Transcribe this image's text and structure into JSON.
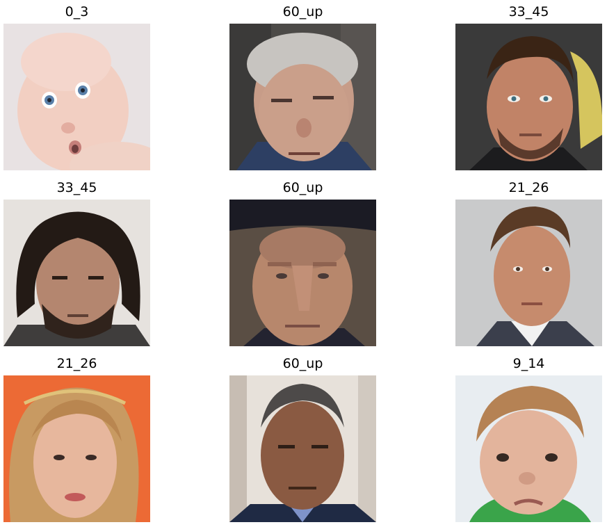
{
  "panels": [
    {
      "label": "0_3"
    },
    {
      "label": "60_up"
    },
    {
      "label": "33_45"
    },
    {
      "label": "33_45"
    },
    {
      "label": "60_up"
    },
    {
      "label": "21_26"
    },
    {
      "label": "21_26"
    },
    {
      "label": "60_up"
    },
    {
      "label": "9_14"
    }
  ]
}
